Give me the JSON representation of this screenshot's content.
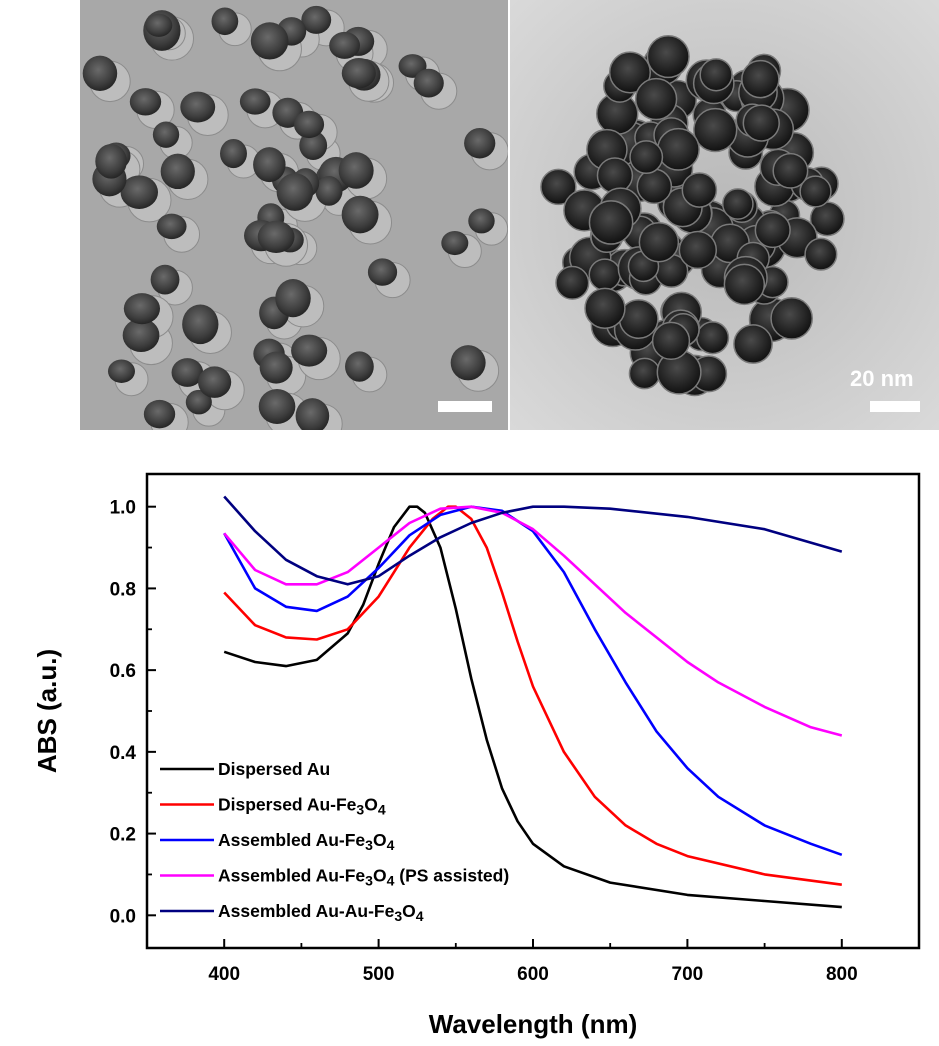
{
  "tem": {
    "panels": [
      {
        "name": "dispersed",
        "scale_label": ""
      },
      {
        "name": "assembled",
        "scale_label": "20 nm"
      }
    ]
  },
  "chart_data": {
    "type": "line",
    "xlabel": "Wavelength (nm)",
    "ylabel": "ABS (a.u.)",
    "xlim": [
      350,
      850
    ],
    "ylim": [
      -0.08,
      1.08
    ],
    "xticks": [
      400,
      500,
      600,
      700,
      800
    ],
    "yticks": [
      0.0,
      0.2,
      0.4,
      0.6,
      0.8,
      1.0
    ],
    "ytick_labels": [
      "0.0",
      "0.2",
      "0.4",
      "0.6",
      "0.8",
      "1.0"
    ],
    "grid": false,
    "legend_position": "bottom-left",
    "series": [
      {
        "name": "Dispersed Au",
        "label_parts": [
          [
            "Dispersed Au",
            ""
          ]
        ],
        "color": "#000000",
        "points": [
          [
            400,
            0.645
          ],
          [
            420,
            0.62
          ],
          [
            440,
            0.61
          ],
          [
            460,
            0.625
          ],
          [
            480,
            0.69
          ],
          [
            490,
            0.76
          ],
          [
            500,
            0.86
          ],
          [
            510,
            0.95
          ],
          [
            520,
            1.0
          ],
          [
            525,
            1.0
          ],
          [
            530,
            0.985
          ],
          [
            540,
            0.9
          ],
          [
            550,
            0.75
          ],
          [
            560,
            0.58
          ],
          [
            570,
            0.43
          ],
          [
            580,
            0.31
          ],
          [
            590,
            0.23
          ],
          [
            600,
            0.175
          ],
          [
            620,
            0.12
          ],
          [
            650,
            0.08
          ],
          [
            700,
            0.05
          ],
          [
            750,
            0.035
          ],
          [
            800,
            0.02
          ]
        ]
      },
      {
        "name": "Dispersed Au-Fe3O4",
        "label_parts": [
          [
            "Dispersed Au-Fe",
            ""
          ],
          [
            "3",
            "sub"
          ],
          [
            "O",
            ""
          ],
          [
            "4",
            "sub"
          ]
        ],
        "color": "#ff0000",
        "points": [
          [
            400,
            0.79
          ],
          [
            420,
            0.71
          ],
          [
            440,
            0.68
          ],
          [
            460,
            0.675
          ],
          [
            480,
            0.7
          ],
          [
            500,
            0.78
          ],
          [
            520,
            0.9
          ],
          [
            535,
            0.97
          ],
          [
            545,
            1.0
          ],
          [
            550,
            1.0
          ],
          [
            560,
            0.97
          ],
          [
            570,
            0.9
          ],
          [
            580,
            0.79
          ],
          [
            590,
            0.67
          ],
          [
            600,
            0.56
          ],
          [
            620,
            0.4
          ],
          [
            640,
            0.29
          ],
          [
            660,
            0.22
          ],
          [
            680,
            0.175
          ],
          [
            700,
            0.145
          ],
          [
            750,
            0.1
          ],
          [
            800,
            0.075
          ]
        ]
      },
      {
        "name": "Assembled Au-Fe3O4",
        "label_parts": [
          [
            "Assembled Au-Fe",
            ""
          ],
          [
            "3",
            "sub"
          ],
          [
            "O",
            ""
          ],
          [
            "4",
            "sub"
          ]
        ],
        "color": "#0000ff",
        "points": [
          [
            400,
            0.935
          ],
          [
            420,
            0.8
          ],
          [
            440,
            0.755
          ],
          [
            460,
            0.745
          ],
          [
            480,
            0.78
          ],
          [
            500,
            0.85
          ],
          [
            520,
            0.93
          ],
          [
            540,
            0.98
          ],
          [
            560,
            1.0
          ],
          [
            580,
            0.99
          ],
          [
            600,
            0.94
          ],
          [
            620,
            0.84
          ],
          [
            640,
            0.7
          ],
          [
            660,
            0.57
          ],
          [
            680,
            0.45
          ],
          [
            700,
            0.36
          ],
          [
            720,
            0.29
          ],
          [
            750,
            0.22
          ],
          [
            780,
            0.175
          ],
          [
            800,
            0.148
          ]
        ]
      },
      {
        "name": "Assembled Au-Fe3O4 (PS assisted)",
        "label_parts": [
          [
            "Assembled Au-Fe",
            ""
          ],
          [
            "3",
            "sub"
          ],
          [
            "O",
            ""
          ],
          [
            "4",
            "sub"
          ],
          [
            " (PS assisted)",
            ""
          ]
        ],
        "color": "#ff00ff",
        "points": [
          [
            400,
            0.935
          ],
          [
            420,
            0.845
          ],
          [
            440,
            0.81
          ],
          [
            460,
            0.81
          ],
          [
            480,
            0.84
          ],
          [
            500,
            0.9
          ],
          [
            520,
            0.96
          ],
          [
            540,
            0.995
          ],
          [
            560,
            1.0
          ],
          [
            580,
            0.985
          ],
          [
            600,
            0.945
          ],
          [
            620,
            0.88
          ],
          [
            640,
            0.81
          ],
          [
            660,
            0.74
          ],
          [
            680,
            0.68
          ],
          [
            700,
            0.62
          ],
          [
            720,
            0.57
          ],
          [
            750,
            0.51
          ],
          [
            780,
            0.46
          ],
          [
            800,
            0.44
          ]
        ]
      },
      {
        "name": "Assembled Au-Au-Fe3O4",
        "label_parts": [
          [
            "Assembled Au-Au-Fe",
            ""
          ],
          [
            "3",
            "sub"
          ],
          [
            "O",
            ""
          ],
          [
            "4",
            "sub"
          ]
        ],
        "color": "#000080",
        "points": [
          [
            400,
            1.025
          ],
          [
            420,
            0.94
          ],
          [
            440,
            0.87
          ],
          [
            460,
            0.83
          ],
          [
            480,
            0.81
          ],
          [
            500,
            0.83
          ],
          [
            520,
            0.88
          ],
          [
            540,
            0.925
          ],
          [
            560,
            0.96
          ],
          [
            580,
            0.985
          ],
          [
            600,
            1.0
          ],
          [
            620,
            1.0
          ],
          [
            650,
            0.995
          ],
          [
            700,
            0.975
          ],
          [
            750,
            0.945
          ],
          [
            800,
            0.89
          ]
        ]
      }
    ]
  }
}
